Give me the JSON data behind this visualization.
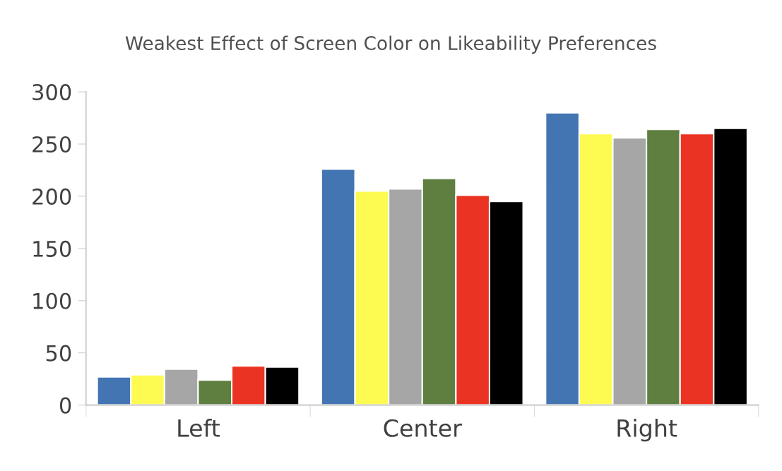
{
  "chart_data": {
    "type": "bar",
    "title": "Weakest Effect of Screen Color on Likeability Preferences",
    "categories": [
      "Left",
      "Center",
      "Right"
    ],
    "series": [
      {
        "color": "#4275b2",
        "values": [
          27,
          226,
          280
        ]
      },
      {
        "color": "#fdfb52",
        "values": [
          29,
          205,
          260
        ]
      },
      {
        "color": "#a6a6a6",
        "values": [
          34.5,
          207,
          256
        ]
      },
      {
        "color": "#5e7f3f",
        "values": [
          24,
          217,
          264
        ]
      },
      {
        "color": "#eb3323",
        "values": [
          37.5,
          201,
          260
        ]
      },
      {
        "color": "#000000",
        "values": [
          36.5,
          195,
          265
        ]
      }
    ],
    "ylim": [
      0,
      300
    ],
    "yticks": [
      0,
      50,
      100,
      150,
      200,
      250,
      300
    ],
    "grid": false,
    "legend": false
  }
}
